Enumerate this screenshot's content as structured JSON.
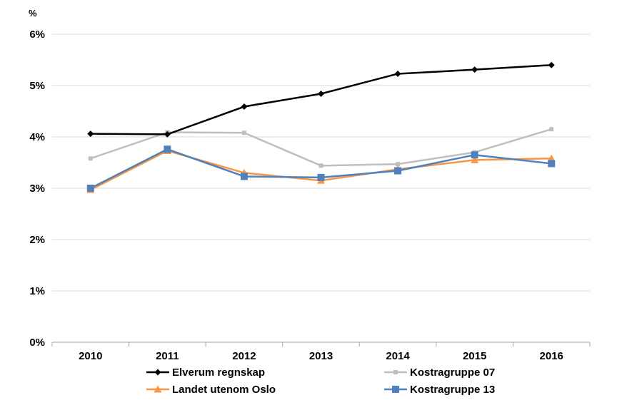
{
  "chart_data": {
    "type": "line",
    "title": "",
    "xlabel": "",
    "ylabel": "%",
    "categories": [
      "2010",
      "2011",
      "2012",
      "2013",
      "2014",
      "2015",
      "2016"
    ],
    "ylim": [
      0,
      6
    ],
    "yticks": [
      "0%",
      "1%",
      "2%",
      "3%",
      "4%",
      "5%",
      "6%"
    ],
    "grid": "horizontal",
    "legend": "bottom",
    "series": [
      {
        "name": "Elverum regnskap",
        "color": "#000000",
        "marker": "diamond",
        "values": [
          4.06,
          4.05,
          4.59,
          4.84,
          5.23,
          5.31,
          5.4
        ]
      },
      {
        "name": "Kostragruppe 07",
        "color": "#BFBFBF",
        "marker": "square-small",
        "values": [
          3.58,
          4.09,
          4.08,
          3.44,
          3.47,
          3.7,
          4.15
        ]
      },
      {
        "name": "Landet utenom Oslo",
        "color": "#F79646",
        "marker": "triangle",
        "values": [
          2.97,
          3.73,
          3.3,
          3.15,
          3.37,
          3.55,
          3.58
        ]
      },
      {
        "name": "Kostragruppe 13",
        "color": "#4F81BD",
        "marker": "square",
        "values": [
          3.0,
          3.76,
          3.23,
          3.21,
          3.34,
          3.65,
          3.48
        ]
      }
    ]
  }
}
